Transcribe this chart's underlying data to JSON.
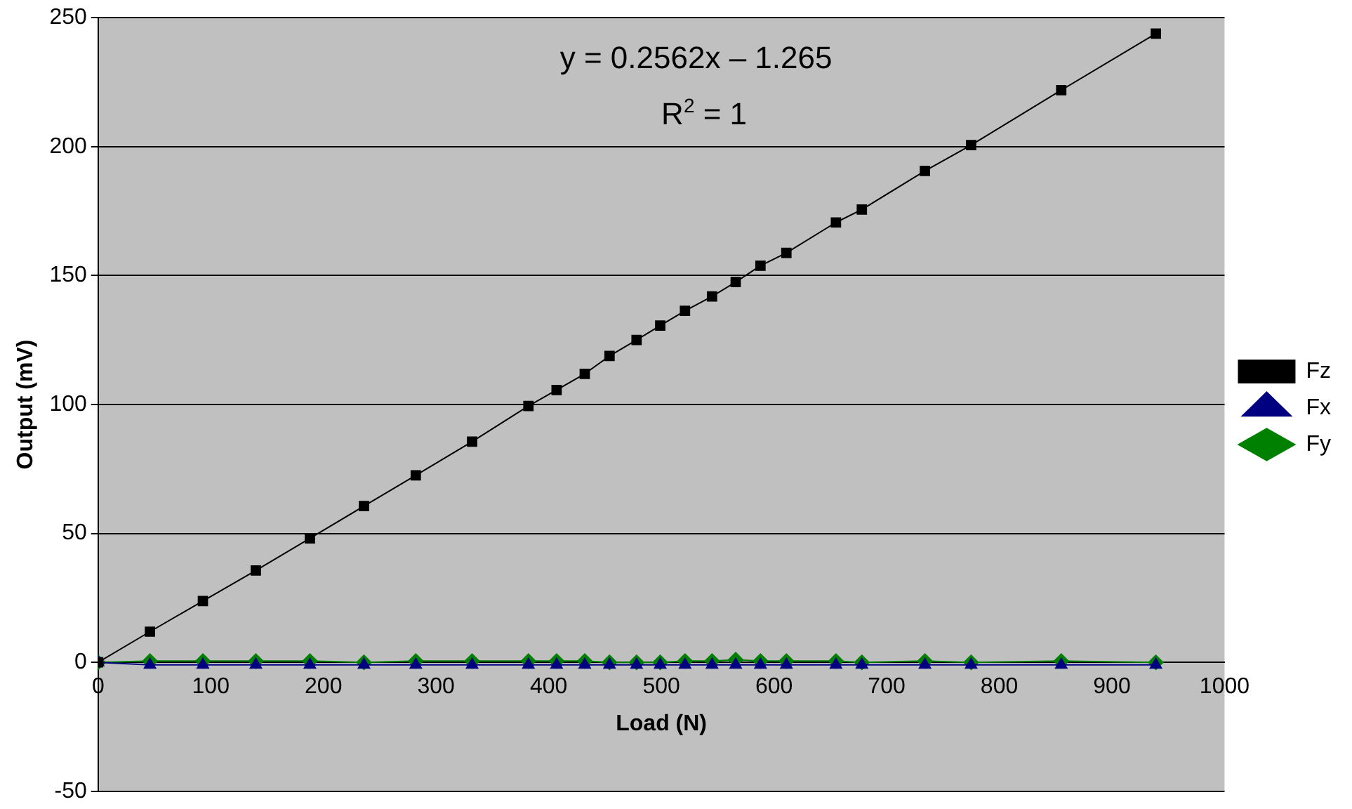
{
  "chart_data": {
    "type": "line",
    "xlabel": "Load (N)",
    "ylabel": "Output (mV)",
    "x": [
      0,
      46,
      93,
      140,
      188,
      236,
      282,
      332,
      382,
      407,
      432,
      454,
      478,
      499,
      521,
      545,
      566,
      588,
      611,
      655,
      678,
      734,
      775,
      855,
      939
    ],
    "series": [
      {
        "name": "Fz",
        "color": "#000000",
        "marker": "square",
        "values": [
          0,
          11.9,
          23.8,
          35.6,
          48.1,
          60.6,
          72.5,
          85.6,
          99.4,
          105.6,
          111.9,
          118.8,
          125,
          130.6,
          136.3,
          141.9,
          147.5,
          153.8,
          158.8,
          170.6,
          175.6,
          190.6,
          200.6,
          221.9,
          243.8
        ]
      },
      {
        "name": "Fx",
        "color": "#000080",
        "marker": "triangle",
        "values": [
          0,
          -1,
          -1,
          -1,
          -1,
          -1,
          -1,
          -1,
          -1,
          -1,
          -1,
          -1,
          -1,
          -1,
          -1,
          -1,
          -1,
          -1,
          -1,
          -1,
          -1,
          -1,
          -1,
          -1,
          -1
        ]
      },
      {
        "name": "Fy",
        "color": "#008000",
        "marker": "diamond",
        "values": [
          0,
          0.5,
          0.5,
          0.5,
          0.5,
          0,
          0.5,
          0.5,
          0.5,
          0.5,
          0.5,
          0,
          0,
          0,
          0.5,
          0.5,
          1,
          0.5,
          0.5,
          0.5,
          0,
          0.5,
          0,
          0.5,
          0
        ]
      }
    ],
    "xlim": [
      0,
      1000
    ],
    "xticks": [
      0,
      100,
      200,
      300,
      400,
      500,
      600,
      700,
      800,
      900,
      1000
    ],
    "ylim": [
      -50,
      250
    ],
    "yticks": [
      -50,
      0,
      50,
      100,
      150,
      200,
      250
    ],
    "grid": "y",
    "legend": "right",
    "line_style": "solid",
    "annotations": [
      "y = 0.2562x – 1.265",
      "R$^{2}$ = 1"
    ]
  }
}
